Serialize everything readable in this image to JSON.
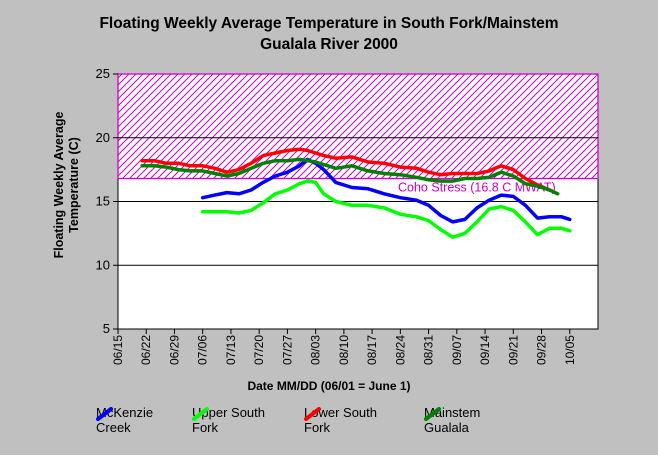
{
  "chart_data": {
    "type": "line",
    "title": "Floating Weekly Average Temperature in South Fork/Mainstem",
    "subtitle": "Gualala River 2000",
    "ylabel": "Floating Weekly Average Temperature (C)",
    "xlabel": "Date MM/DD (06/01 = June 1)",
    "ylim": [
      5,
      25
    ],
    "yticks": [
      5,
      10,
      15,
      20,
      25
    ],
    "xlim": [
      "06/15",
      "10/12"
    ],
    "xticks": [
      "06/15",
      "06/22",
      "06/29",
      "07/06",
      "07/13",
      "07/20",
      "07/27",
      "08/03",
      "08/10",
      "08/17",
      "08/24",
      "08/31",
      "09/07",
      "09/14",
      "09/21",
      "09/28",
      "10/05"
    ],
    "grid": "horizontal",
    "threshold": {
      "label": "Coho Stress (16.8 C MWAT)",
      "value": 16.8,
      "color": "#cc00cc"
    },
    "series": [
      {
        "name": "McKenzie Creek",
        "color": "#0000ff",
        "x": [
          "07/06",
          "07/09",
          "07/12",
          "07/15",
          "07/18",
          "07/21",
          "07/24",
          "07/27",
          "07/30",
          "08/01",
          "08/03",
          "08/05",
          "08/08",
          "08/12",
          "08/16",
          "08/20",
          "08/24",
          "08/28",
          "08/31",
          "09/03",
          "09/06",
          "09/09",
          "09/12",
          "09/15",
          "09/18",
          "09/21",
          "09/24",
          "09/27",
          "09/30",
          "10/03",
          "10/05"
        ],
        "values": [
          15.3,
          15.5,
          15.7,
          15.6,
          15.9,
          16.5,
          17.0,
          17.3,
          17.8,
          18.3,
          18.0,
          17.5,
          16.5,
          16.1,
          16.0,
          15.6,
          15.3,
          15.1,
          14.7,
          13.9,
          13.4,
          13.6,
          14.5,
          15.1,
          15.5,
          15.4,
          14.7,
          13.7,
          13.8,
          13.8,
          13.6
        ]
      },
      {
        "name": "Upper South Fork",
        "color": "#00ff00",
        "x": [
          "07/06",
          "07/09",
          "07/12",
          "07/15",
          "07/18",
          "07/21",
          "07/24",
          "07/27",
          "07/30",
          "08/01",
          "08/03",
          "08/05",
          "08/08",
          "08/12",
          "08/16",
          "08/20",
          "08/24",
          "08/28",
          "08/31",
          "09/03",
          "09/06",
          "09/09",
          "09/12",
          "09/15",
          "09/18",
          "09/21",
          "09/24",
          "09/27",
          "09/30",
          "10/03",
          "10/05"
        ],
        "values": [
          14.2,
          14.2,
          14.2,
          14.1,
          14.3,
          14.9,
          15.6,
          15.9,
          16.4,
          16.6,
          16.5,
          15.6,
          15.0,
          14.7,
          14.7,
          14.5,
          14.0,
          13.8,
          13.5,
          12.8,
          12.2,
          12.5,
          13.4,
          14.4,
          14.6,
          14.3,
          13.4,
          12.4,
          12.9,
          12.9,
          12.7
        ]
      },
      {
        "name": "Lower South Fork",
        "color": "#ff0000",
        "x": [
          "06/21",
          "06/24",
          "06/27",
          "06/30",
          "07/03",
          "07/06",
          "07/09",
          "07/12",
          "07/15",
          "07/18",
          "07/21",
          "07/24",
          "07/27",
          "07/30",
          "08/01",
          "08/03",
          "08/05",
          "08/08",
          "08/12",
          "08/16",
          "08/20",
          "08/24",
          "08/28",
          "08/31",
          "09/03",
          "09/06",
          "09/09",
          "09/12",
          "09/15",
          "09/18",
          "09/21",
          "09/24",
          "09/27",
          "09/30"
        ],
        "values": [
          18.2,
          18.2,
          18.0,
          18.0,
          17.8,
          17.8,
          17.6,
          17.3,
          17.5,
          18.0,
          18.6,
          18.8,
          19.0,
          19.1,
          19.0,
          18.8,
          18.6,
          18.4,
          18.5,
          18.1,
          18.0,
          17.7,
          17.6,
          17.3,
          17.1,
          17.2,
          17.2,
          17.2,
          17.4,
          17.8,
          17.5,
          16.8,
          16.3,
          15.9
        ]
      },
      {
        "name": "Mainstem Gualala",
        "color": "#008000",
        "x": [
          "06/21",
          "06/24",
          "06/27",
          "06/30",
          "07/03",
          "07/06",
          "07/09",
          "07/12",
          "07/15",
          "07/18",
          "07/21",
          "07/24",
          "07/27",
          "07/30",
          "08/01",
          "08/03",
          "08/05",
          "08/08",
          "08/12",
          "08/16",
          "08/20",
          "08/24",
          "08/28",
          "08/31",
          "09/03",
          "09/06",
          "09/09",
          "09/12",
          "09/15",
          "09/18",
          "09/21",
          "09/24",
          "09/27",
          "09/30",
          "10/02"
        ],
        "values": [
          17.8,
          17.8,
          17.7,
          17.5,
          17.4,
          17.4,
          17.2,
          17.0,
          17.2,
          17.6,
          18.0,
          18.2,
          18.2,
          18.3,
          18.2,
          18.1,
          17.9,
          17.6,
          17.8,
          17.4,
          17.2,
          17.1,
          16.9,
          16.7,
          16.6,
          16.6,
          16.8,
          16.8,
          16.9,
          17.3,
          17.0,
          16.4,
          16.2,
          15.9,
          15.6
        ]
      }
    ]
  }
}
